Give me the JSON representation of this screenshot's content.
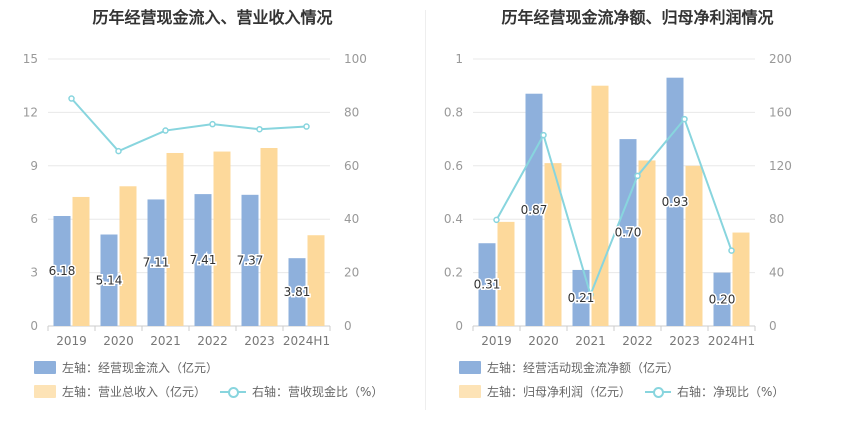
{
  "colors": {
    "bar1": "#8eb0dc",
    "bar2": "#fdd99b",
    "line": "#88d5de",
    "grid": "#e8e8e8"
  },
  "chart_data": [
    {
      "type": "bar",
      "title": "历年经营现金流入、营业收入情况",
      "categories": [
        "2019",
        "2020",
        "2021",
        "2022",
        "2023",
        "2024H1"
      ],
      "left_axis": {
        "min": 0,
        "max": 15,
        "ticks": [
          "0",
          "3",
          "6",
          "9",
          "12",
          "15"
        ]
      },
      "right_axis": {
        "min": 0,
        "max": 100,
        "ticks": [
          "0",
          "20",
          "40",
          "60",
          "80",
          "100"
        ]
      },
      "series": [
        {
          "name": "左轴：经营现金流入（亿元）",
          "axis": "left",
          "kind": "bar",
          "values": [
            6.18,
            5.14,
            7.11,
            7.41,
            7.37,
            3.81
          ],
          "labels": [
            "6.18",
            "5.14",
            "7.11",
            "7.41",
            "7.37",
            "3.81"
          ]
        },
        {
          "name": "左轴：营业总收入（亿元）",
          "axis": "left",
          "kind": "bar",
          "values": [
            7.25,
            7.85,
            9.72,
            9.8,
            10.0,
            5.1
          ]
        },
        {
          "name": "右轴：营收现金比（%）",
          "axis": "right",
          "kind": "line",
          "values": [
            85.2,
            65.5,
            73.2,
            75.6,
            73.7,
            74.7
          ]
        }
      ]
    },
    {
      "type": "bar",
      "title": "历年经营现金流净额、归母净利润情况",
      "categories": [
        "2019",
        "2020",
        "2021",
        "2022",
        "2023",
        "2024H1"
      ],
      "left_axis": {
        "min": 0,
        "max": 1,
        "ticks": [
          "0",
          "0.2",
          "0.4",
          "0.6",
          "0.8",
          "1"
        ]
      },
      "right_axis": {
        "min": 0,
        "max": 200,
        "ticks": [
          "0",
          "40",
          "80",
          "120",
          "160",
          "200"
        ]
      },
      "series": [
        {
          "name": "左轴：经营活动现金流净额（亿元）",
          "axis": "left",
          "kind": "bar",
          "values": [
            0.31,
            0.87,
            0.21,
            0.7,
            0.93,
            0.2
          ],
          "labels": [
            "0.31",
            "0.87",
            "0.21",
            "0.70",
            "0.93",
            "0.20"
          ]
        },
        {
          "name": "左轴：归母净利润（亿元）",
          "axis": "left",
          "kind": "bar",
          "values": [
            0.39,
            0.61,
            0.9,
            0.62,
            0.6,
            0.35
          ]
        },
        {
          "name": "右轴：净现比（%）",
          "axis": "right",
          "kind": "line",
          "values": [
            79.5,
            143.0,
            23.5,
            112.5,
            155.0,
            56.5
          ]
        }
      ]
    }
  ]
}
